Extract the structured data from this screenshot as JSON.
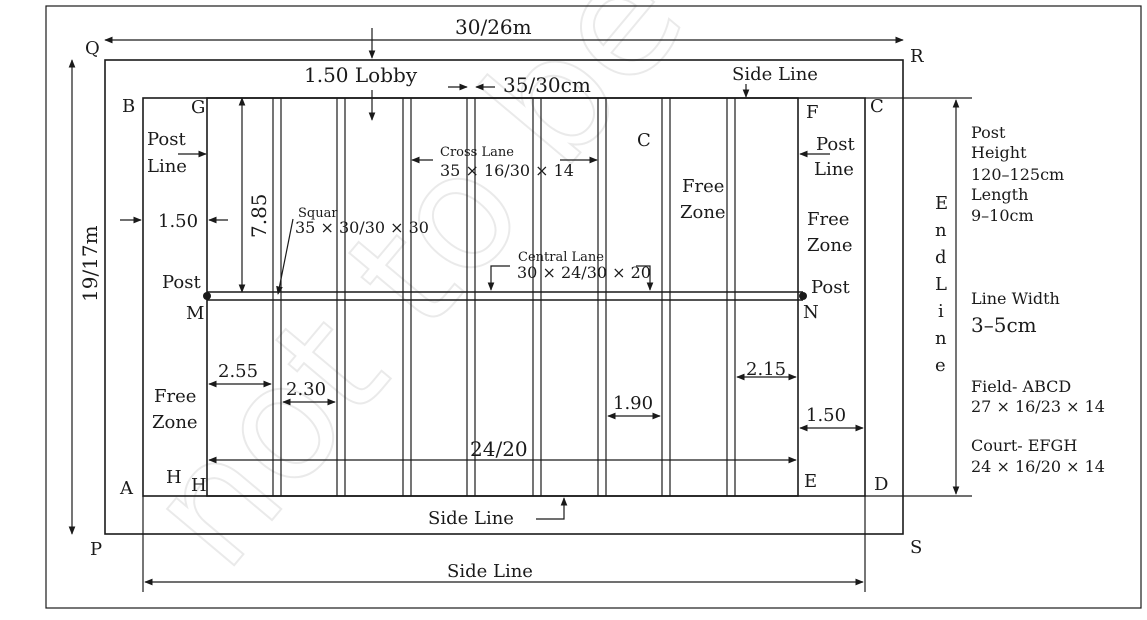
{
  "dims": {
    "top_width": "30/26m",
    "lobby": "1.50 Lobby",
    "post_gap": "35/30cm",
    "height": "19/17m",
    "post_offset": "7.85",
    "left_margin": "1.50",
    "bottom_width": "24/20",
    "d255": "2.55",
    "d230": "2.30",
    "d190": "1.90",
    "d215": "2.15",
    "d150_right": "1.50"
  },
  "corners": {
    "Q": "Q",
    "R": "R",
    "P": "P",
    "S": "S",
    "B": "B",
    "C": "C",
    "A": "A",
    "D": "D",
    "G": "G",
    "F": "F",
    "H1": "H",
    "H2": "H",
    "E": "E",
    "M": "M",
    "N": "N"
  },
  "labels": {
    "side_line_top": "Side Line",
    "side_line_mid": "Side Line",
    "side_line_bottom": "Side Line",
    "post_line_left_1": "Post",
    "post_line_left_2": "Line",
    "post_line_right_1": "Post",
    "post_line_right_2": "Line",
    "post_left": "Post",
    "post_right": "Post",
    "cross_lane_1": "Cross Lane",
    "cross_lane_2": "35 × 16/30 × 14",
    "square_1": "Squar",
    "square_2": "35 × 30/30 × 30",
    "central_lane_1": "Central Lane",
    "central_lane_2": "30 × 24/30 × 20",
    "c_mid": "C",
    "free_zone_mid_1": "Free",
    "free_zone_mid_2": "Zone",
    "free_zone_right_1": "Free",
    "free_zone_right_2": "Zone",
    "free_zone_left_1": "Free",
    "free_zone_left_2": "Zone",
    "end_line": [
      "E",
      "n",
      "d",
      "L",
      "i",
      "n",
      "e"
    ]
  },
  "legend": {
    "post_title": "Post",
    "height_label": "Height",
    "height_value": "120–125cm",
    "length_label": "Length",
    "length_value": "9–10cm",
    "line_width_label": "Line Width",
    "line_width_value": "3–5cm",
    "field_label": "Field- ABCD",
    "field_value": "27 × 16/23 × 14",
    "court_label": "Court- EFGH",
    "court_value": "24 × 16/20 × 14"
  }
}
